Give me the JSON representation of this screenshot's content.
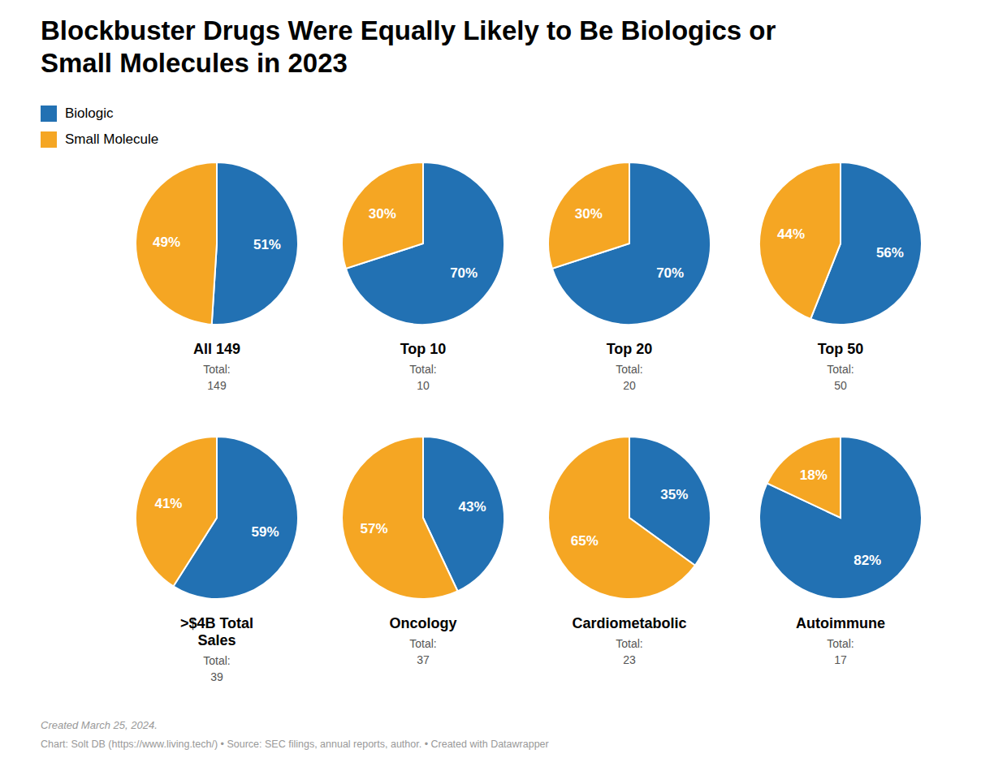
{
  "title": "Blockbuster Drugs Were Equally Likely to Be Biologics or\nSmall Molecules in 2023",
  "legend": "upper left",
  "annotations": [
    "Created March 25, 2024.",
    "Chart: Solt DB (https://www.living.tech/) • Source: SEC filings, annual reports, author. • Created with Datawrapper"
  ],
  "chart_data": [
    {
      "type": "pie",
      "title": "All 149",
      "categories": [
        "Biologic",
        "Small Molecule"
      ],
      "values": [
        51,
        49
      ],
      "value_labels": [
        "51%",
        "49%"
      ],
      "colors": [
        "#2271b3",
        "#f5a623"
      ],
      "data_labels": true,
      "annotations": [
        "Total:"
      ],
      "total": 149
    },
    {
      "type": "pie",
      "title": "Top 10",
      "categories": [
        "Biologic",
        "Small Molecule"
      ],
      "values": [
        70,
        30
      ],
      "value_labels": [
        "70%",
        "30%"
      ],
      "colors": [
        "#2271b3",
        "#f5a623"
      ],
      "data_labels": true,
      "annotations": [
        "Total:"
      ],
      "total": 10
    },
    {
      "type": "pie",
      "title": "Top 20",
      "categories": [
        "Biologic",
        "Small Molecule"
      ],
      "values": [
        70,
        30
      ],
      "value_labels": [
        "70%",
        "30%"
      ],
      "colors": [
        "#2271b3",
        "#f5a623"
      ],
      "data_labels": true,
      "annotations": [
        "Total:"
      ],
      "total": 20
    },
    {
      "type": "pie",
      "title": "Top 50",
      "categories": [
        "Biologic",
        "Small Molecule"
      ],
      "values": [
        56,
        44
      ],
      "value_labels": [
        "56%",
        "44%"
      ],
      "colors": [
        "#2271b3",
        "#f5a623"
      ],
      "data_labels": true,
      "annotations": [
        "Total:"
      ],
      "total": 50
    },
    {
      "type": "pie",
      "title": ">$4B Total\nSales",
      "categories": [
        "Biologic",
        "Small Molecule"
      ],
      "values": [
        59,
        41
      ],
      "value_labels": [
        "59%",
        "41%"
      ],
      "colors": [
        "#2271b3",
        "#f5a623"
      ],
      "data_labels": true,
      "annotations": [
        "Total:"
      ],
      "total": 39
    },
    {
      "type": "pie",
      "title": "Oncology",
      "categories": [
        "Biologic",
        "Small Molecule"
      ],
      "values": [
        43,
        57
      ],
      "value_labels": [
        "43%",
        "57%"
      ],
      "colors": [
        "#2271b3",
        "#f5a623"
      ],
      "data_labels": true,
      "annotations": [
        "Total:"
      ],
      "total": 37
    },
    {
      "type": "pie",
      "title": "Cardiometabolic",
      "categories": [
        "Biologic",
        "Small Molecule"
      ],
      "values": [
        35,
        65
      ],
      "value_labels": [
        "35%",
        "65%"
      ],
      "colors": [
        "#2271b3",
        "#f5a623"
      ],
      "data_labels": true,
      "annotations": [
        "Total:"
      ],
      "total": 23
    },
    {
      "type": "pie",
      "title": "Autoimmune",
      "categories": [
        "Biologic",
        "Small Molecule"
      ],
      "values": [
        82,
        18
      ],
      "value_labels": [
        "82%",
        "18%"
      ],
      "colors": [
        "#2271b3",
        "#f5a623"
      ],
      "data_labels": true,
      "annotations": [
        "Total:"
      ],
      "total": 17
    }
  ]
}
